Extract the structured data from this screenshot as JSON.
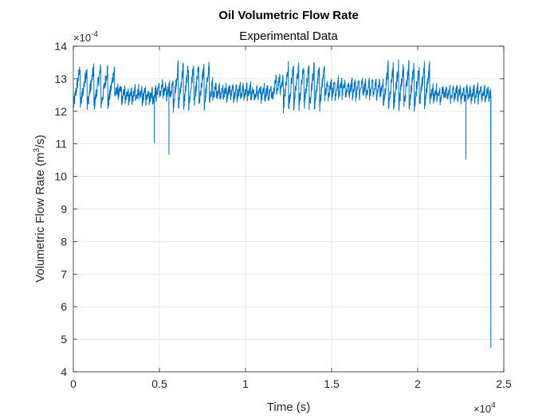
{
  "chart_data": {
    "type": "line",
    "title": "Oil Volumetric Flow Rate",
    "subtitle": "Experimental Data",
    "xlabel": "Time (s)",
    "ylabel_main": "Volumetric Flow Rate (m",
    "ylabel_sup": "3",
    "ylabel_end": "/s)",
    "x_exponent_label": "×10",
    "x_exponent": "4",
    "y_exponent_label": "×10",
    "y_exponent": "-4",
    "xlim": [
      0,
      25000
    ],
    "ylim": [
      0.0004,
      0.0014
    ],
    "x_scale": 10000,
    "y_scale": 0.0001,
    "x_ticks": [
      0,
      5000,
      10000,
      15000,
      20000,
      25000
    ],
    "x_tick_labels": [
      "0",
      "0.5",
      "1",
      "1.5",
      "2",
      "2.5"
    ],
    "y_ticks": [
      0.0004,
      0.0005,
      0.0006,
      0.0007,
      0.0008,
      0.0009,
      0.001,
      0.0011,
      0.0012,
      0.0013,
      0.0014
    ],
    "y_tick_labels": [
      "4",
      "5",
      "6",
      "7",
      "8",
      "9",
      "10",
      "11",
      "12",
      "13",
      "14"
    ],
    "grid": true,
    "line_color": "#0072BD",
    "series": [
      {
        "segments": [
          {
            "x0": 0,
            "x1": 2400,
            "base": 0.001275,
            "sawAmp": 0.00012,
            "period": 400,
            "noise": 4e-05
          },
          {
            "x0": 2400,
            "x1": 2800,
            "base": 0.00126,
            "sawAmp": 2e-05,
            "period": 200,
            "noise": 3e-05
          },
          {
            "x0": 2800,
            "x1": 4800,
            "base": 0.00125,
            "sawAmp": 4e-05,
            "period": 200,
            "noise": 3e-05
          },
          {
            "x0": 4800,
            "x1": 5800,
            "base": 0.001265,
            "sawAmp": 5e-05,
            "period": 200,
            "noise": 3e-05
          },
          {
            "x0": 5800,
            "x1": 8100,
            "base": 0.00128,
            "sawAmp": 0.00013,
            "period": 300,
            "noise": 4e-05
          },
          {
            "x0": 8100,
            "x1": 10500,
            "base": 0.00126,
            "sawAmp": 4e-05,
            "period": 200,
            "noise": 3e-05
          },
          {
            "x0": 10500,
            "x1": 11600,
            "base": 0.001255,
            "sawAmp": 4e-05,
            "period": 200,
            "noise": 3e-05
          },
          {
            "x0": 11600,
            "x1": 12200,
            "base": 0.00128,
            "sawAmp": 6e-05,
            "period": 200,
            "noise": 3e-05
          },
          {
            "x0": 12200,
            "x1": 14600,
            "base": 0.00128,
            "sawAmp": 0.00013,
            "period": 300,
            "noise": 4e-05
          },
          {
            "x0": 14600,
            "x1": 18000,
            "base": 0.00127,
            "sawAmp": 5e-05,
            "period": 200,
            "noise": 3e-05
          },
          {
            "x0": 18000,
            "x1": 20700,
            "base": 0.00128,
            "sawAmp": 0.00013,
            "period": 300,
            "noise": 4e-05
          },
          {
            "x0": 20700,
            "x1": 24250,
            "base": 0.001255,
            "sawAmp": 4e-05,
            "period": 200,
            "noise": 3e-05
          }
        ],
        "spikes": [
          {
            "x": 4700,
            "y": 0.001103
          },
          {
            "x": 5550,
            "y": 0.001068
          },
          {
            "x": 22800,
            "y": 0.001053
          },
          {
            "x": 24250,
            "y": 0.000475
          }
        ]
      }
    ]
  }
}
